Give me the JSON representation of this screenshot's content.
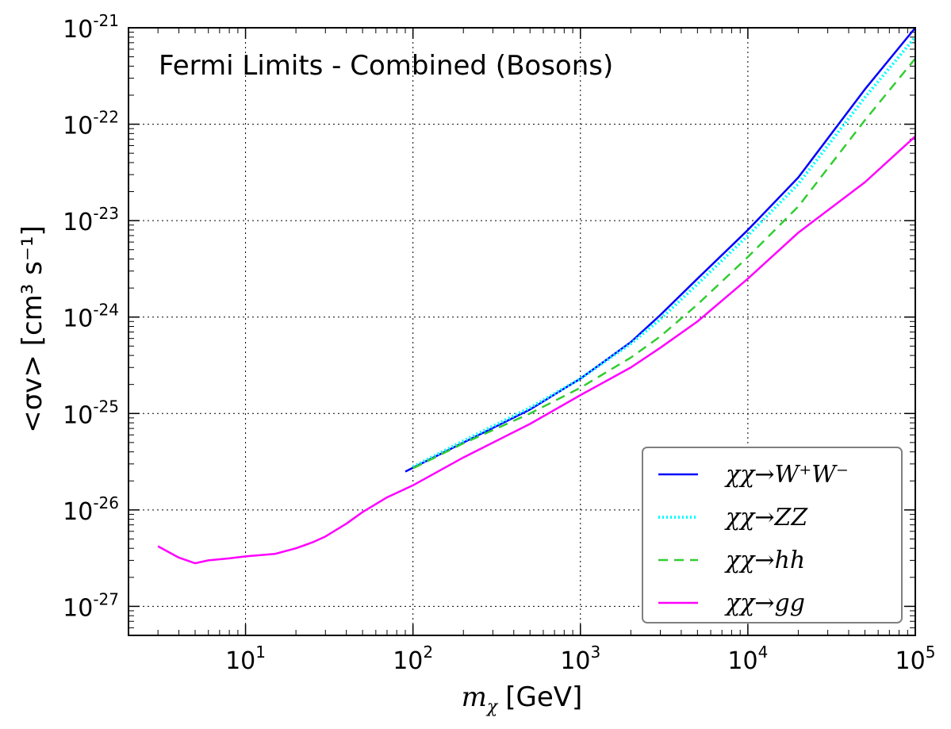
{
  "chart_data": {
    "type": "line",
    "title": "Fermi Limits - Combined (Bosons)",
    "xlabel": {
      "symbol": "m",
      "subscript": "χ",
      "unit": "[GeV]"
    },
    "ylabel": {
      "text": "<σv> [cm³ s⁻¹]"
    },
    "xscale": "log",
    "yscale": "log",
    "xlim": [
      2,
      100000
    ],
    "ylim": [
      5e-28,
      1e-21
    ],
    "grid": true,
    "legend_loc": "lower right",
    "x_ticks": [
      {
        "value": 10,
        "base": "10",
        "exp": "1"
      },
      {
        "value": 100,
        "base": "10",
        "exp": "2"
      },
      {
        "value": 1000,
        "base": "10",
        "exp": "3"
      },
      {
        "value": 10000,
        "base": "10",
        "exp": "4"
      },
      {
        "value": 100000,
        "base": "10",
        "exp": "5"
      }
    ],
    "y_ticks": [
      {
        "value": 1e-27,
        "base": "10",
        "exp": "-27"
      },
      {
        "value": 1e-26,
        "base": "10",
        "exp": "-26"
      },
      {
        "value": 1e-25,
        "base": "10",
        "exp": "-25"
      },
      {
        "value": 1e-24,
        "base": "10",
        "exp": "-24"
      },
      {
        "value": 1e-23,
        "base": "10",
        "exp": "-23"
      },
      {
        "value": 1e-22,
        "base": "10",
        "exp": "-22"
      },
      {
        "value": 1e-21,
        "base": "10",
        "exp": "-21"
      }
    ],
    "series": [
      {
        "name": "χχ → W⁺W⁻",
        "label": "χχ→W⁺W⁻",
        "color": "#0000ff",
        "dash": "solid",
        "x": [
          90,
          200,
          500,
          1000,
          2000,
          3000,
          5000,
          10000,
          20000,
          50000,
          100000
        ],
        "y": [
          2.5e-26,
          5e-26,
          1.1e-25,
          2.3e-25,
          5.5e-25,
          1.05e-24,
          2.5e-24,
          8e-24,
          2.8e-23,
          2.3e-22,
          1e-21
        ]
      },
      {
        "name": "χχ → ZZ",
        "label": "χχ→ZZ",
        "color": "#00ffff",
        "dash": "dotted",
        "x": [
          100,
          200,
          500,
          1000,
          2000,
          3000,
          5000,
          10000,
          20000,
          50000,
          100000
        ],
        "y": [
          2.8e-26,
          5.2e-26,
          1.15e-25,
          2.3e-25,
          5.3e-25,
          9.5e-25,
          2.2e-24,
          7e-24,
          2.4e-23,
          1.9e-22,
          8e-22
        ]
      },
      {
        "name": "χχ → hh",
        "label": "χχ→hh",
        "color": "#32cd32",
        "dash": "dashed",
        "x": [
          100,
          200,
          500,
          1000,
          2000,
          3000,
          5000,
          10000,
          20000,
          50000,
          100000
        ],
        "y": [
          2.7e-26,
          4.9e-26,
          1e-25,
          1.85e-25,
          3.8e-25,
          6.3e-25,
          1.35e-24,
          4.2e-24,
          1.4e-23,
          1.1e-22,
          4.8e-22
        ]
      },
      {
        "name": "χχ → gg",
        "label": "χχ→gg",
        "color": "#ff00ff",
        "dash": "solid",
        "x": [
          3,
          4,
          5,
          6,
          8,
          10,
          15,
          20,
          25,
          30,
          40,
          50,
          70,
          100,
          200,
          500,
          1000,
          2000,
          3000,
          5000,
          10000,
          20000,
          50000,
          100000
        ],
        "y": [
          4.2e-27,
          3.2e-27,
          2.8e-27,
          3e-27,
          3.15e-27,
          3.3e-27,
          3.5e-27,
          4e-27,
          4.6e-27,
          5.3e-27,
          7.2e-27,
          9.5e-27,
          1.35e-26,
          1.8e-26,
          3.5e-26,
          7.8e-26,
          1.55e-25,
          3e-25,
          4.8e-25,
          9e-25,
          2.5e-24,
          7.5e-24,
          2.5e-23,
          7.5e-23
        ]
      }
    ]
  }
}
